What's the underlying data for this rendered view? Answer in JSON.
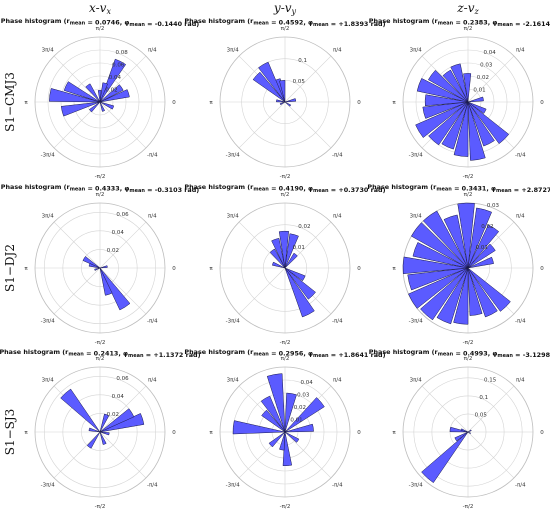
{
  "column_titles": [
    "x-v",
    "y-v",
    "z-v"
  ],
  "column_title_subscripts": [
    "x",
    "y",
    "z"
  ],
  "row_labels": [
    "S1−CMJ3",
    "S1−DJ2",
    "S1−SJ3"
  ],
  "angle_labels": [
    "π/2",
    "π/4",
    "0",
    "-π/4",
    "-π/2",
    "-3π/4",
    "π",
    "3π/4"
  ],
  "colors": {
    "bar_fill": "#5b5bff",
    "bar_stroke": "#1a1a4a",
    "grid": "#d4d4d4"
  },
  "chart_data": [
    {
      "type": "polar-histogram",
      "row": 0,
      "col": 0,
      "title": "Phase histogram",
      "r_mean": "0.0746",
      "phi_mean": "-0.1440 rad",
      "rticks": [
        "0.02",
        "0.04",
        "0.06",
        "0.08"
      ],
      "rmax": 0.1,
      "bins": [
        {
          "angle": 0.3,
          "value": 0.046
        },
        {
          "angle": 0.6,
          "value": 0.04
        },
        {
          "angle": 1.1,
          "value": 0.07
        },
        {
          "angle": 1.3,
          "value": 0.03
        },
        {
          "angle": 1.6,
          "value": 0.018
        },
        {
          "angle": 2.2,
          "value": 0.032
        },
        {
          "angle": 2.7,
          "value": 0.058
        },
        {
          "angle": 3.0,
          "value": 0.078
        },
        {
          "angle": -2.9,
          "value": 0.06
        },
        {
          "angle": -2.4,
          "value": 0.02
        },
        {
          "angle": -1.2,
          "value": 0.015
        },
        {
          "angle": -0.4,
          "value": 0.022
        }
      ]
    },
    {
      "type": "polar-histogram",
      "row": 0,
      "col": 1,
      "title": "Phase histogram",
      "r_mean": "0.4592",
      "phi_mean": "+1.8393 rad",
      "rticks": [
        "0.05",
        "0.1"
      ],
      "rmax": 0.15,
      "bins": [
        {
          "angle": 1.9,
          "value": 0.055
        },
        {
          "angle": 2.1,
          "value": 0.1
        },
        {
          "angle": 1.7,
          "value": 0.05
        },
        {
          "angle": 2.4,
          "value": 0.09
        },
        {
          "angle": 0.2,
          "value": 0.025
        },
        {
          "angle": 3.0,
          "value": 0.02
        },
        {
          "angle": -2.7,
          "value": 0.012
        },
        {
          "angle": -0.6,
          "value": 0.015
        }
      ]
    },
    {
      "type": "polar-histogram",
      "row": 0,
      "col": 2,
      "title": "Phase histogram",
      "r_mean": "0.2383",
      "phi_mean": "-2.1614 rad",
      "rticks": [
        "0.01",
        "0.02",
        "0.03",
        "0.04"
      ],
      "rmax": 0.05,
      "bins": [
        {
          "angle": 1.6,
          "value": 0.022
        },
        {
          "angle": 1.9,
          "value": 0.03
        },
        {
          "angle": 2.2,
          "value": 0.028
        },
        {
          "angle": 2.5,
          "value": 0.035
        },
        {
          "angle": 2.8,
          "value": 0.04
        },
        {
          "angle": 3.1,
          "value": 0.033
        },
        {
          "angle": -2.9,
          "value": 0.035
        },
        {
          "angle": -2.6,
          "value": 0.044
        },
        {
          "angle": -2.3,
          "value": 0.04
        },
        {
          "angle": -2.0,
          "value": 0.038
        },
        {
          "angle": -1.7,
          "value": 0.042
        },
        {
          "angle": -1.4,
          "value": 0.045
        },
        {
          "angle": -1.1,
          "value": 0.036
        },
        {
          "angle": -0.8,
          "value": 0.04
        },
        {
          "angle": -0.5,
          "value": 0.015
        },
        {
          "angle": 0.2,
          "value": 0.012
        }
      ]
    },
    {
      "type": "polar-histogram",
      "row": 1,
      "col": 0,
      "title": "Phase histogram",
      "r_mean": "0.4333",
      "phi_mean": "-0.3103 rad",
      "rticks": [
        "0.02",
        "0.04",
        "0.06"
      ],
      "rmax": 0.07,
      "bins": [
        {
          "angle": -1.0,
          "value": 0.05
        },
        {
          "angle": -1.25,
          "value": 0.03
        },
        {
          "angle": 2.6,
          "value": 0.02
        },
        {
          "angle": 2.85,
          "value": 0.012
        },
        {
          "angle": 0.2,
          "value": 0.008
        },
        {
          "angle": -2.8,
          "value": 0.006
        }
      ]
    },
    {
      "type": "polar-histogram",
      "row": 1,
      "col": 1,
      "title": "Phase histogram",
      "r_mean": "0.4190",
      "phi_mean": "+0.3730 rad",
      "rticks": [
        "0.01",
        "0.02"
      ],
      "rmax": 0.03,
      "bins": [
        {
          "angle": 1.3,
          "value": 0.016
        },
        {
          "angle": 1.6,
          "value": 0.017
        },
        {
          "angle": 1.9,
          "value": 0.014
        },
        {
          "angle": 2.2,
          "value": 0.01
        },
        {
          "angle": 0.9,
          "value": 0.008
        },
        {
          "angle": -1.1,
          "value": 0.024
        },
        {
          "angle": -0.8,
          "value": 0.018
        },
        {
          "angle": -0.5,
          "value": 0.01
        },
        {
          "angle": 2.8,
          "value": 0.006
        }
      ]
    },
    {
      "type": "polar-histogram",
      "row": 1,
      "col": 2,
      "title": "Phase histogram",
      "r_mean": "0.3431",
      "phi_mean": "+2.8727 rad",
      "rticks": [
        "0.01",
        "0.02",
        "0.03"
      ],
      "rmax": 0.03,
      "bins": [
        {
          "angle": 1.0,
          "value": 0.022
        },
        {
          "angle": 1.3,
          "value": 0.028
        },
        {
          "angle": 1.6,
          "value": 0.03
        },
        {
          "angle": 1.9,
          "value": 0.025
        },
        {
          "angle": 2.2,
          "value": 0.03
        },
        {
          "angle": 2.5,
          "value": 0.03
        },
        {
          "angle": 2.8,
          "value": 0.026
        },
        {
          "angle": 3.1,
          "value": 0.03
        },
        {
          "angle": -2.9,
          "value": 0.028
        },
        {
          "angle": -2.6,
          "value": 0.03
        },
        {
          "angle": -2.3,
          "value": 0.029
        },
        {
          "angle": -2.0,
          "value": 0.027
        },
        {
          "angle": -1.7,
          "value": 0.026
        },
        {
          "angle": -1.4,
          "value": 0.022
        },
        {
          "angle": -1.1,
          "value": 0.024
        },
        {
          "angle": -0.8,
          "value": 0.025
        },
        {
          "angle": 0.3,
          "value": 0.012
        },
        {
          "angle": 0.7,
          "value": 0.015
        }
      ]
    },
    {
      "type": "polar-histogram",
      "row": 2,
      "col": 0,
      "title": "Phase histogram",
      "r_mean": "0.2413",
      "phi_mean": "+1.1372 rad",
      "rticks": [
        "0.02",
        "0.04",
        "0.06"
      ],
      "rmax": 0.07,
      "bins": [
        {
          "angle": 0.3,
          "value": 0.048
        },
        {
          "angle": 0.55,
          "value": 0.04
        },
        {
          "angle": 2.3,
          "value": 0.056
        },
        {
          "angle": 1.2,
          "value": 0.02
        },
        {
          "angle": 2.9,
          "value": 0.012
        },
        {
          "angle": -2.2,
          "value": 0.02
        },
        {
          "angle": -1.2,
          "value": 0.014
        },
        {
          "angle": -0.2,
          "value": 0.01
        }
      ]
    },
    {
      "type": "polar-histogram",
      "row": 2,
      "col": 1,
      "title": "Phase histogram",
      "r_mean": "0.2956",
      "phi_mean": "+1.8641 rad",
      "rticks": [
        "0.01",
        "0.02",
        "0.03",
        "0.04"
      ],
      "rmax": 0.05,
      "bins": [
        {
          "angle": 1.75,
          "value": 0.045
        },
        {
          "angle": 1.4,
          "value": 0.03
        },
        {
          "angle": 2.1,
          "value": 0.03
        },
        {
          "angle": 2.4,
          "value": 0.022
        },
        {
          "angle": 3.05,
          "value": 0.04
        },
        {
          "angle": 0.7,
          "value": 0.036
        },
        {
          "angle": 0.15,
          "value": 0.022
        },
        {
          "angle": -1.5,
          "value": 0.026
        },
        {
          "angle": -1.75,
          "value": 0.014
        },
        {
          "angle": -2.4,
          "value": 0.015
        },
        {
          "angle": -0.6,
          "value": 0.012
        }
      ]
    },
    {
      "type": "polar-histogram",
      "row": 2,
      "col": 2,
      "title": "Phase histogram",
      "r_mean": "0.4993",
      "phi_mean": "-3.1298 rad",
      "rticks": [
        "0.05",
        "0.1",
        "0.15"
      ],
      "rmax": 0.18,
      "bins": [
        {
          "angle": -2.3,
          "value": 0.17
        },
        {
          "angle": -2.6,
          "value": 0.04
        },
        {
          "angle": 3.0,
          "value": 0.05
        },
        {
          "angle": 2.8,
          "value": 0.02
        },
        {
          "angle": 0.5,
          "value": 0.01
        },
        {
          "angle": -0.5,
          "value": 0.008
        }
      ]
    }
  ]
}
